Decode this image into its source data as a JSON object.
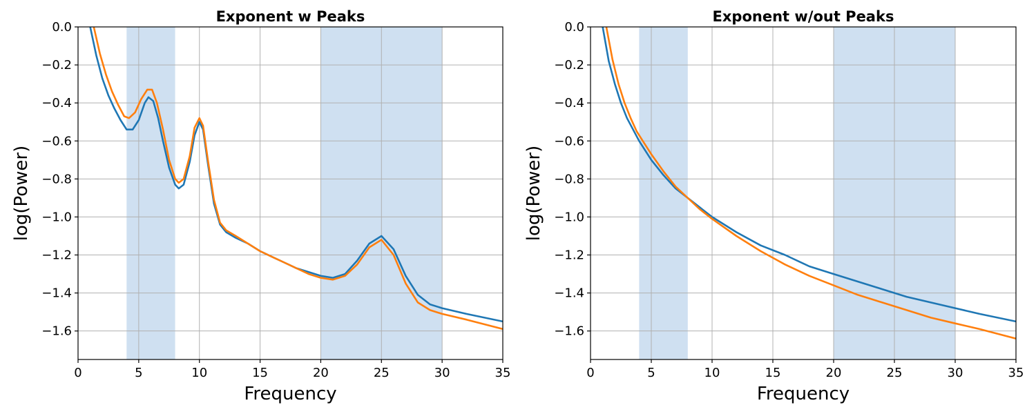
{
  "chart_data": [
    {
      "type": "line",
      "title": "Exponent w Peaks",
      "xlabel": "Frequency",
      "ylabel": "log(Power)",
      "xlim": [
        0,
        35
      ],
      "ylim": [
        -1.75,
        0.0
      ],
      "xticks": [
        0,
        5,
        10,
        15,
        20,
        25,
        30,
        35
      ],
      "xtick_labels": [
        "0",
        "5",
        "10",
        "15",
        "20",
        "25",
        "30",
        "35"
      ],
      "yticks": [
        0.0,
        -0.2,
        -0.4,
        -0.6,
        -0.8,
        -1.0,
        -1.2,
        -1.4,
        -1.6
      ],
      "ytick_labels": [
        "0.0",
        "−0.2",
        "−0.4",
        "−0.6",
        "−0.8",
        "−1.0",
        "−1.2",
        "−1.4",
        "−1.6"
      ],
      "grid": true,
      "shaded_bands": [
        [
          4,
          8
        ],
        [
          20,
          30
        ]
      ],
      "series": [
        {
          "color": "#1f77b4",
          "points": [
            [
              1.0,
              0.0
            ],
            [
              1.5,
              -0.15
            ],
            [
              2.0,
              -0.27
            ],
            [
              2.5,
              -0.36
            ],
            [
              3.0,
              -0.43
            ],
            [
              3.5,
              -0.49
            ],
            [
              4.0,
              -0.54
            ],
            [
              4.5,
              -0.54
            ],
            [
              5.0,
              -0.49
            ],
            [
              5.5,
              -0.4
            ],
            [
              5.8,
              -0.37
            ],
            [
              6.2,
              -0.39
            ],
            [
              6.6,
              -0.48
            ],
            [
              7.0,
              -0.6
            ],
            [
              7.5,
              -0.74
            ],
            [
              8.0,
              -0.83
            ],
            [
              8.3,
              -0.85
            ],
            [
              8.7,
              -0.83
            ],
            [
              9.2,
              -0.71
            ],
            [
              9.6,
              -0.57
            ],
            [
              10.0,
              -0.5
            ],
            [
              10.3,
              -0.54
            ],
            [
              10.7,
              -0.72
            ],
            [
              11.2,
              -0.93
            ],
            [
              11.7,
              -1.04
            ],
            [
              12.2,
              -1.08
            ],
            [
              13.0,
              -1.11
            ],
            [
              14.0,
              -1.14
            ],
            [
              15.0,
              -1.18
            ],
            [
              16.0,
              -1.21
            ],
            [
              17.0,
              -1.24
            ],
            [
              18.0,
              -1.27
            ],
            [
              19.0,
              -1.29
            ],
            [
              20.0,
              -1.31
            ],
            [
              21.0,
              -1.32
            ],
            [
              22.0,
              -1.3
            ],
            [
              23.0,
              -1.23
            ],
            [
              24.0,
              -1.14
            ],
            [
              25.0,
              -1.1
            ],
            [
              26.0,
              -1.17
            ],
            [
              27.0,
              -1.31
            ],
            [
              28.0,
              -1.41
            ],
            [
              29.0,
              -1.46
            ],
            [
              30.0,
              -1.48
            ],
            [
              32.0,
              -1.51
            ],
            [
              35.0,
              -1.55
            ]
          ]
        },
        {
          "color": "#ff7f0e",
          "points": [
            [
              1.3,
              0.0
            ],
            [
              1.8,
              -0.14
            ],
            [
              2.3,
              -0.25
            ],
            [
              2.8,
              -0.34
            ],
            [
              3.3,
              -0.41
            ],
            [
              3.8,
              -0.47
            ],
            [
              4.2,
              -0.48
            ],
            [
              4.7,
              -0.45
            ],
            [
              5.2,
              -0.38
            ],
            [
              5.7,
              -0.33
            ],
            [
              6.1,
              -0.33
            ],
            [
              6.5,
              -0.4
            ],
            [
              7.0,
              -0.54
            ],
            [
              7.5,
              -0.7
            ],
            [
              8.0,
              -0.8
            ],
            [
              8.3,
              -0.82
            ],
            [
              8.7,
              -0.8
            ],
            [
              9.2,
              -0.68
            ],
            [
              9.6,
              -0.53
            ],
            [
              10.0,
              -0.48
            ],
            [
              10.3,
              -0.52
            ],
            [
              10.7,
              -0.7
            ],
            [
              11.2,
              -0.91
            ],
            [
              11.7,
              -1.03
            ],
            [
              12.2,
              -1.07
            ],
            [
              13.0,
              -1.1
            ],
            [
              14.0,
              -1.14
            ],
            [
              15.0,
              -1.18
            ],
            [
              16.0,
              -1.21
            ],
            [
              17.0,
              -1.24
            ],
            [
              18.0,
              -1.27
            ],
            [
              19.0,
              -1.3
            ],
            [
              20.0,
              -1.32
            ],
            [
              21.0,
              -1.33
            ],
            [
              22.0,
              -1.31
            ],
            [
              23.0,
              -1.25
            ],
            [
              24.0,
              -1.16
            ],
            [
              25.0,
              -1.12
            ],
            [
              26.0,
              -1.2
            ],
            [
              27.0,
              -1.35
            ],
            [
              28.0,
              -1.45
            ],
            [
              29.0,
              -1.49
            ],
            [
              30.0,
              -1.51
            ],
            [
              32.0,
              -1.54
            ],
            [
              35.0,
              -1.59
            ]
          ]
        }
      ]
    },
    {
      "type": "line",
      "title": "Exponent w/out Peaks",
      "xlabel": "Frequency",
      "ylabel": "log(Power)",
      "xlim": [
        0,
        35
      ],
      "ylim": [
        -1.75,
        0.0
      ],
      "xticks": [
        0,
        5,
        10,
        15,
        20,
        25,
        30,
        35
      ],
      "xtick_labels": [
        "0",
        "5",
        "10",
        "15",
        "20",
        "25",
        "30",
        "35"
      ],
      "yticks": [
        0.0,
        -0.2,
        -0.4,
        -0.6,
        -0.8,
        -1.0,
        -1.2,
        -1.4,
        -1.6
      ],
      "ytick_labels": [
        "0.0",
        "−0.2",
        "−0.4",
        "−0.6",
        "−0.8",
        "−1.0",
        "−1.2",
        "−1.4",
        "−1.6"
      ],
      "grid": true,
      "shaded_bands": [
        [
          4,
          8
        ],
        [
          20,
          30
        ]
      ],
      "series": [
        {
          "color": "#1f77b4",
          "points": [
            [
              1.0,
              0.0
            ],
            [
              1.5,
              -0.18
            ],
            [
              2.0,
              -0.3
            ],
            [
              2.5,
              -0.4
            ],
            [
              3.0,
              -0.48
            ],
            [
              3.5,
              -0.54
            ],
            [
              4.0,
              -0.6
            ],
            [
              5.0,
              -0.7
            ],
            [
              6.0,
              -0.78
            ],
            [
              7.0,
              -0.85
            ],
            [
              8.0,
              -0.9
            ],
            [
              9.0,
              -0.95
            ],
            [
              10.0,
              -1.0
            ],
            [
              12.0,
              -1.08
            ],
            [
              14.0,
              -1.15
            ],
            [
              16.0,
              -1.2
            ],
            [
              18.0,
              -1.26
            ],
            [
              20.0,
              -1.3
            ],
            [
              22.0,
              -1.34
            ],
            [
              24.0,
              -1.38
            ],
            [
              26.0,
              -1.42
            ],
            [
              28.0,
              -1.45
            ],
            [
              30.0,
              -1.48
            ],
            [
              32.0,
              -1.51
            ],
            [
              35.0,
              -1.55
            ]
          ]
        },
        {
          "color": "#ff7f0e",
          "points": [
            [
              1.3,
              0.0
            ],
            [
              1.8,
              -0.17
            ],
            [
              2.3,
              -0.3
            ],
            [
              2.8,
              -0.4
            ],
            [
              3.3,
              -0.48
            ],
            [
              3.8,
              -0.55
            ],
            [
              4.3,
              -0.6
            ],
            [
              5.0,
              -0.67
            ],
            [
              6.0,
              -0.76
            ],
            [
              7.0,
              -0.84
            ],
            [
              8.0,
              -0.9
            ],
            [
              9.0,
              -0.96
            ],
            [
              10.0,
              -1.01
            ],
            [
              12.0,
              -1.1
            ],
            [
              14.0,
              -1.18
            ],
            [
              16.0,
              -1.25
            ],
            [
              18.0,
              -1.31
            ],
            [
              20.0,
              -1.36
            ],
            [
              22.0,
              -1.41
            ],
            [
              24.0,
              -1.45
            ],
            [
              26.0,
              -1.49
            ],
            [
              28.0,
              -1.53
            ],
            [
              30.0,
              -1.56
            ],
            [
              32.0,
              -1.59
            ],
            [
              35.0,
              -1.64
            ]
          ]
        }
      ]
    }
  ]
}
